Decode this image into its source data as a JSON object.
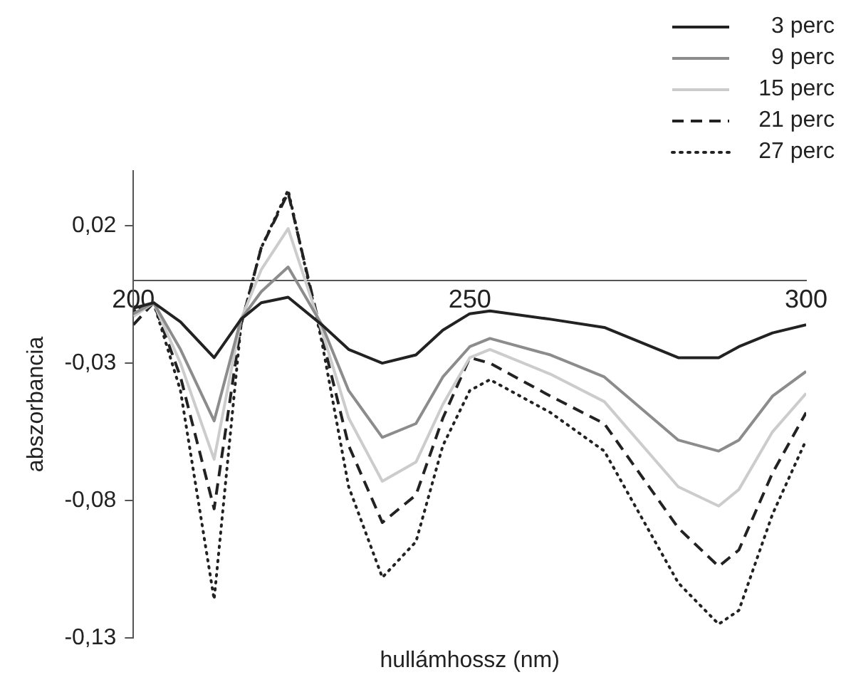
{
  "chart_data": {
    "type": "line",
    "xlabel": "hullámhossz (nm)",
    "ylabel": "abszorbancia",
    "x": [
      200,
      203,
      207,
      212,
      216,
      219,
      223,
      228,
      232,
      237,
      242,
      246,
      250,
      253,
      262,
      270,
      281,
      287,
      290,
      295,
      300
    ],
    "series": [
      {
        "name": "3 perc",
        "color": "#222222",
        "line_style": "solid",
        "values": [
          -0.01,
          -0.008,
          -0.015,
          -0.028,
          -0.014,
          -0.008,
          -0.006,
          -0.016,
          -0.025,
          -0.03,
          -0.027,
          -0.018,
          -0.012,
          -0.011,
          -0.014,
          -0.017,
          -0.028,
          -0.028,
          -0.024,
          -0.019,
          -0.016
        ]
      },
      {
        "name": "9 perc",
        "color": "#8c8c8c",
        "line_style": "solid",
        "values": [
          -0.012,
          -0.008,
          -0.025,
          -0.051,
          -0.014,
          -0.004,
          0.005,
          -0.016,
          -0.04,
          -0.057,
          -0.052,
          -0.035,
          -0.024,
          -0.021,
          -0.027,
          -0.035,
          -0.058,
          -0.062,
          -0.058,
          -0.042,
          -0.033
        ]
      },
      {
        "name": "15 perc",
        "color": "#cccccc",
        "line_style": "solid",
        "values": [
          -0.013,
          -0.008,
          -0.03,
          -0.065,
          -0.014,
          0.004,
          0.019,
          -0.018,
          -0.05,
          -0.073,
          -0.066,
          -0.045,
          -0.028,
          -0.025,
          -0.034,
          -0.044,
          -0.075,
          -0.082,
          -0.076,
          -0.055,
          -0.041
        ]
      },
      {
        "name": "21 perc",
        "color": "#222222",
        "line_style": "dashed",
        "values": [
          -0.016,
          -0.008,
          -0.035,
          -0.083,
          -0.016,
          0.012,
          0.032,
          -0.02,
          -0.06,
          -0.088,
          -0.078,
          -0.05,
          -0.028,
          -0.03,
          -0.042,
          -0.052,
          -0.09,
          -0.104,
          -0.098,
          -0.07,
          -0.048
        ]
      },
      {
        "name": "27 perc",
        "color": "#222222",
        "line_style": "dotted",
        "values": [
          -0.011,
          -0.008,
          -0.04,
          -0.116,
          -0.016,
          0.012,
          0.033,
          -0.022,
          -0.075,
          -0.108,
          -0.095,
          -0.06,
          -0.04,
          -0.036,
          -0.048,
          -0.062,
          -0.11,
          -0.125,
          -0.12,
          -0.085,
          -0.058
        ]
      }
    ],
    "xlim": [
      200,
      300
    ],
    "xticks": [
      200,
      250,
      300
    ],
    "ylim": [
      -0.13,
      0.04
    ],
    "yticks": [
      {
        "value": -0.13,
        "label": "-0,13"
      },
      {
        "value": -0.08,
        "label": "-0,08"
      },
      {
        "value": -0.03,
        "label": "-0,03"
      },
      {
        "value": 0.02,
        "label": "0,02"
      }
    ],
    "grid": false,
    "legend": "top right",
    "marker": "none"
  }
}
